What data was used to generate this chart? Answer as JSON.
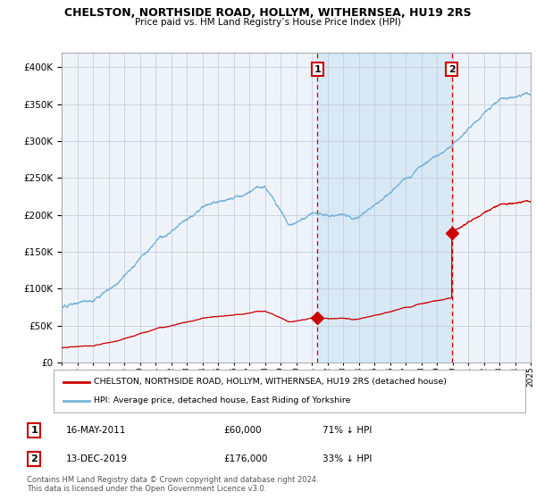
{
  "title1": "CHELSTON, NORTHSIDE ROAD, HOLLYM, WITHERNSEA, HU19 2RS",
  "title2": "Price paid vs. HM Land Registry’s House Price Index (HPI)",
  "legend_label1": "CHELSTON, NORTHSIDE ROAD, HOLLYM, WITHERNSEA, HU19 2RS (detached house)",
  "legend_label2": "HPI: Average price, detached house, East Riding of Yorkshire",
  "sale1_date": "16-MAY-2011",
  "sale1_price": "£60,000",
  "sale1_hpi": "71% ↓ HPI",
  "sale2_date": "13-DEC-2019",
  "sale2_price": "£176,000",
  "sale2_hpi": "33% ↓ HPI",
  "footnote1": "Contains HM Land Registry data © Crown copyright and database right 2024.",
  "footnote2": "This data is licensed under the Open Government Licence v3.0.",
  "hpi_color": "#7ab4d8",
  "sale_color": "#cc0000",
  "bg_color": "#ffffff",
  "plot_bg": "#eef3fa",
  "shade_color": "#d8e8f5",
  "grid_color": "#c0c8d8",
  "ylim": [
    0,
    420000
  ],
  "yticks": [
    0,
    50000,
    100000,
    150000,
    200000,
    250000,
    300000,
    350000,
    400000
  ],
  "sale1_x": 2011.37,
  "sale2_x": 2019.95,
  "sale1_y": 60000,
  "sale2_y": 176000,
  "xmin": 1995,
  "xmax": 2025
}
